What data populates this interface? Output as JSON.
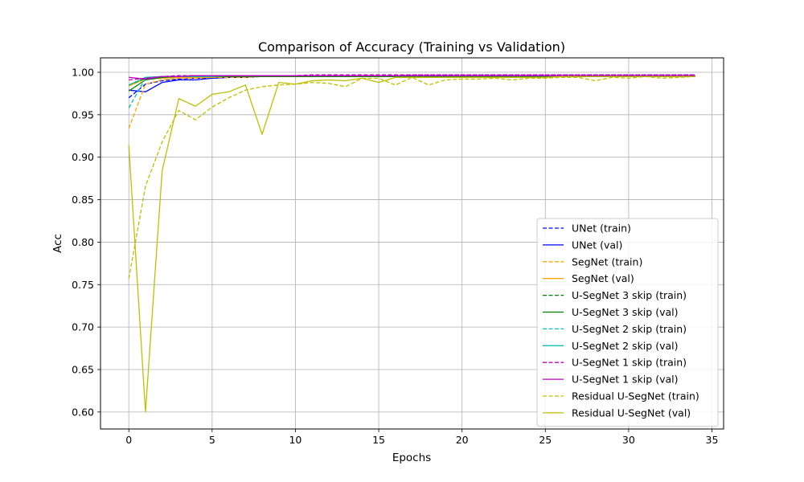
{
  "chart_data": {
    "type": "line",
    "title": "Comparison of Accuracy (Training vs Validation)",
    "xlabel": "Epochs",
    "ylabel": "Acc",
    "xlim": [
      -1.7,
      35.7
    ],
    "ylim": [
      0.58,
      1.017
    ],
    "xticks": [
      0,
      5,
      10,
      15,
      20,
      25,
      30,
      35
    ],
    "yticks": [
      0.6,
      0.65,
      0.7,
      0.75,
      0.8,
      0.85,
      0.9,
      0.95,
      1.0
    ],
    "grid": true,
    "legend_position": "lower-right",
    "x": [
      0,
      1,
      2,
      3,
      4,
      5,
      6,
      7,
      8,
      9,
      10,
      11,
      12,
      13,
      14,
      15,
      16,
      17,
      18,
      19,
      20,
      21,
      22,
      23,
      24,
      25,
      26,
      27,
      28,
      29,
      30,
      31,
      32,
      33,
      34
    ],
    "series": [
      {
        "name": "UNet (train)",
        "color": "#0000ff",
        "style": "dashed",
        "values": [
          0.97,
          0.986,
          0.99,
          0.992,
          0.993,
          0.993,
          0.994,
          0.994,
          0.995,
          0.995,
          0.995,
          0.996,
          0.996,
          0.996,
          0.996,
          0.996,
          0.996,
          0.997,
          0.997,
          0.997,
          0.997,
          0.997,
          0.997,
          0.997,
          0.997,
          0.997,
          0.997,
          0.997,
          0.997,
          0.997,
          0.997,
          0.997,
          0.997,
          0.997,
          0.997
        ]
      },
      {
        "name": "UNet (val)",
        "color": "#0000ff",
        "style": "solid",
        "values": [
          0.979,
          0.977,
          0.988,
          0.991,
          0.991,
          0.993,
          0.994,
          0.995,
          0.995,
          0.995,
          0.995,
          0.996,
          0.996,
          0.996,
          0.996,
          0.996,
          0.996,
          0.996,
          0.996,
          0.996,
          0.996,
          0.996,
          0.996,
          0.996,
          0.996,
          0.996,
          0.996,
          0.996,
          0.996,
          0.996,
          0.996,
          0.996,
          0.996,
          0.996,
          0.996
        ]
      },
      {
        "name": "SegNet (train)",
        "color": "#ffa500",
        "style": "dashed",
        "values": [
          0.934,
          0.986,
          0.991,
          0.993,
          0.993,
          0.994,
          0.994,
          0.994,
          0.995,
          0.995,
          0.995,
          0.995,
          0.995,
          0.995,
          0.995,
          0.995,
          0.995,
          0.995,
          0.995,
          0.995,
          0.995,
          0.995,
          0.995,
          0.995,
          0.995,
          0.995,
          0.995,
          0.995,
          0.995,
          0.995,
          0.995,
          0.995,
          0.995,
          0.995,
          0.995
        ]
      },
      {
        "name": "SegNet (val)",
        "color": "#ffa500",
        "style": "solid",
        "values": [
          0.984,
          0.992,
          0.993,
          0.994,
          0.994,
          0.994,
          0.995,
          0.995,
          0.995,
          0.995,
          0.995,
          0.995,
          0.995,
          0.995,
          0.995,
          0.995,
          0.995,
          0.995,
          0.995,
          0.995,
          0.995,
          0.995,
          0.995,
          0.995,
          0.995,
          0.995,
          0.995,
          0.995,
          0.995,
          0.995,
          0.995,
          0.995,
          0.995,
          0.995,
          0.995
        ]
      },
      {
        "name": "U-SegNet 3 skip (train)",
        "color": "#008000",
        "style": "dashed",
        "values": [
          0.985,
          0.993,
          0.995,
          0.995,
          0.996,
          0.996,
          0.996,
          0.996,
          0.996,
          0.996,
          0.996,
          0.996,
          0.996,
          0.996,
          0.996,
          0.996,
          0.996,
          0.996,
          0.996,
          0.996,
          0.996,
          0.996,
          0.996,
          0.996,
          0.996,
          0.996,
          0.996,
          0.996,
          0.996,
          0.996,
          0.996,
          0.996,
          0.996,
          0.996,
          0.996
        ]
      },
      {
        "name": "U-SegNet 3 skip (val)",
        "color": "#008000",
        "style": "solid",
        "values": [
          0.978,
          0.991,
          0.994,
          0.995,
          0.995,
          0.995,
          0.995,
          0.995,
          0.995,
          0.995,
          0.995,
          0.995,
          0.995,
          0.995,
          0.995,
          0.995,
          0.995,
          0.995,
          0.995,
          0.995,
          0.995,
          0.995,
          0.995,
          0.995,
          0.995,
          0.995,
          0.995,
          0.995,
          0.995,
          0.995,
          0.995,
          0.995,
          0.995,
          0.995,
          0.995
        ]
      },
      {
        "name": "U-SegNet 2 skip (train)",
        "color": "#00bfbf",
        "style": "dashed",
        "values": [
          0.958,
          0.993,
          0.995,
          0.995,
          0.996,
          0.996,
          0.996,
          0.996,
          0.996,
          0.996,
          0.996,
          0.996,
          0.996,
          0.996,
          0.996,
          0.996,
          0.996,
          0.996,
          0.996,
          0.996,
          0.996,
          0.996,
          0.996,
          0.996,
          0.996,
          0.996,
          0.996,
          0.996,
          0.996,
          0.996,
          0.996,
          0.996,
          0.996,
          0.996,
          0.996
        ]
      },
      {
        "name": "U-SegNet 2 skip (val)",
        "color": "#00bfbf",
        "style": "solid",
        "values": [
          0.985,
          0.994,
          0.995,
          0.995,
          0.995,
          0.995,
          0.996,
          0.996,
          0.996,
          0.996,
          0.996,
          0.996,
          0.996,
          0.996,
          0.996,
          0.996,
          0.996,
          0.996,
          0.996,
          0.996,
          0.996,
          0.996,
          0.996,
          0.996,
          0.996,
          0.996,
          0.996,
          0.996,
          0.996,
          0.996,
          0.996,
          0.996,
          0.996,
          0.996,
          0.996
        ]
      },
      {
        "name": "U-SegNet 1 skip (train)",
        "color": "#bf00bf",
        "style": "dashed",
        "values": [
          0.991,
          0.993,
          0.995,
          0.996,
          0.996,
          0.996,
          0.996,
          0.996,
          0.996,
          0.996,
          0.996,
          0.997,
          0.997,
          0.997,
          0.997,
          0.997,
          0.997,
          0.997,
          0.997,
          0.997,
          0.997,
          0.997,
          0.997,
          0.997,
          0.997,
          0.997,
          0.997,
          0.997,
          0.997,
          0.997,
          0.997,
          0.997,
          0.997,
          0.997,
          0.997
        ]
      },
      {
        "name": "U-SegNet 1 skip (val)",
        "color": "#bf00bf",
        "style": "solid",
        "values": [
          0.994,
          0.992,
          0.995,
          0.995,
          0.996,
          0.996,
          0.996,
          0.996,
          0.996,
          0.996,
          0.996,
          0.996,
          0.996,
          0.996,
          0.996,
          0.996,
          0.996,
          0.996,
          0.996,
          0.996,
          0.996,
          0.996,
          0.996,
          0.996,
          0.996,
          0.996,
          0.996,
          0.996,
          0.996,
          0.996,
          0.996,
          0.996,
          0.996,
          0.996,
          0.996
        ]
      },
      {
        "name": "Residual U-SegNet (train)",
        "color": "#bfbf00",
        "style": "dashed",
        "values": [
          0.757,
          0.866,
          0.918,
          0.955,
          0.944,
          0.959,
          0.97,
          0.979,
          0.983,
          0.985,
          0.986,
          0.988,
          0.987,
          0.983,
          0.993,
          0.993,
          0.985,
          0.994,
          0.985,
          0.991,
          0.992,
          0.992,
          0.993,
          0.991,
          0.993,
          0.993,
          0.994,
          0.994,
          0.99,
          0.994,
          0.993,
          0.995,
          0.993,
          0.994,
          0.995
        ]
      },
      {
        "name": "Residual U-SegNet (val)",
        "color": "#bfbf00",
        "style": "solid",
        "values": [
          0.914,
          0.6,
          0.884,
          0.969,
          0.96,
          0.974,
          0.977,
          0.985,
          0.927,
          0.988,
          0.986,
          0.99,
          0.991,
          0.99,
          0.993,
          0.988,
          0.994,
          0.994,
          0.994,
          0.994,
          0.994,
          0.994,
          0.994,
          0.994,
          0.994,
          0.994,
          0.995,
          0.995,
          0.995,
          0.995,
          0.995,
          0.995,
          0.995,
          0.995,
          0.995
        ]
      }
    ]
  }
}
